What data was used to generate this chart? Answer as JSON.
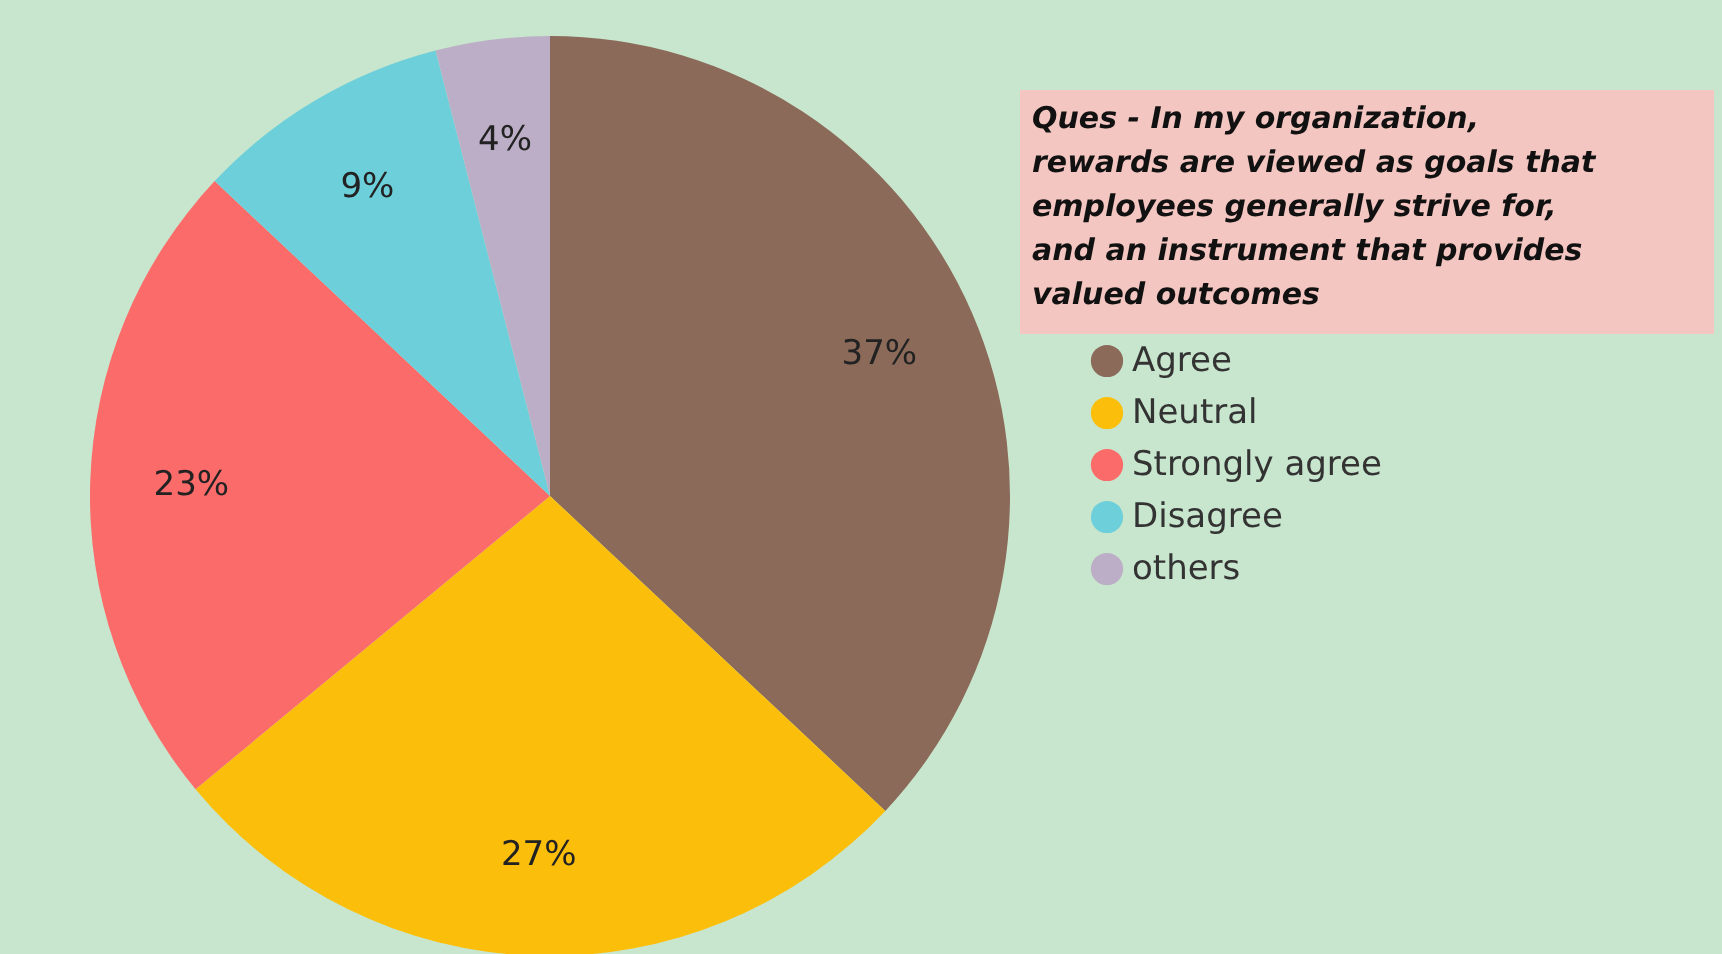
{
  "chart_data": {
    "type": "pie",
    "title": "Ques -  In my organization, rewards are viewed as goals that employees generally strive for, and an instrument that provides valued outcomes",
    "categories": [
      "Agree",
      "Neutral",
      "Strongly agree",
      "Disagree",
      "others"
    ],
    "values": [
      37,
      27,
      23,
      9,
      4
    ],
    "colors": [
      "#8b6a5a",
      "#fbbf0b",
      "#fb6b6a",
      "#6ccfda",
      "#bcaec6"
    ],
    "value_labels": [
      "37%",
      "27%",
      "23%",
      "9%",
      "4%"
    ],
    "legend": "right"
  }
}
